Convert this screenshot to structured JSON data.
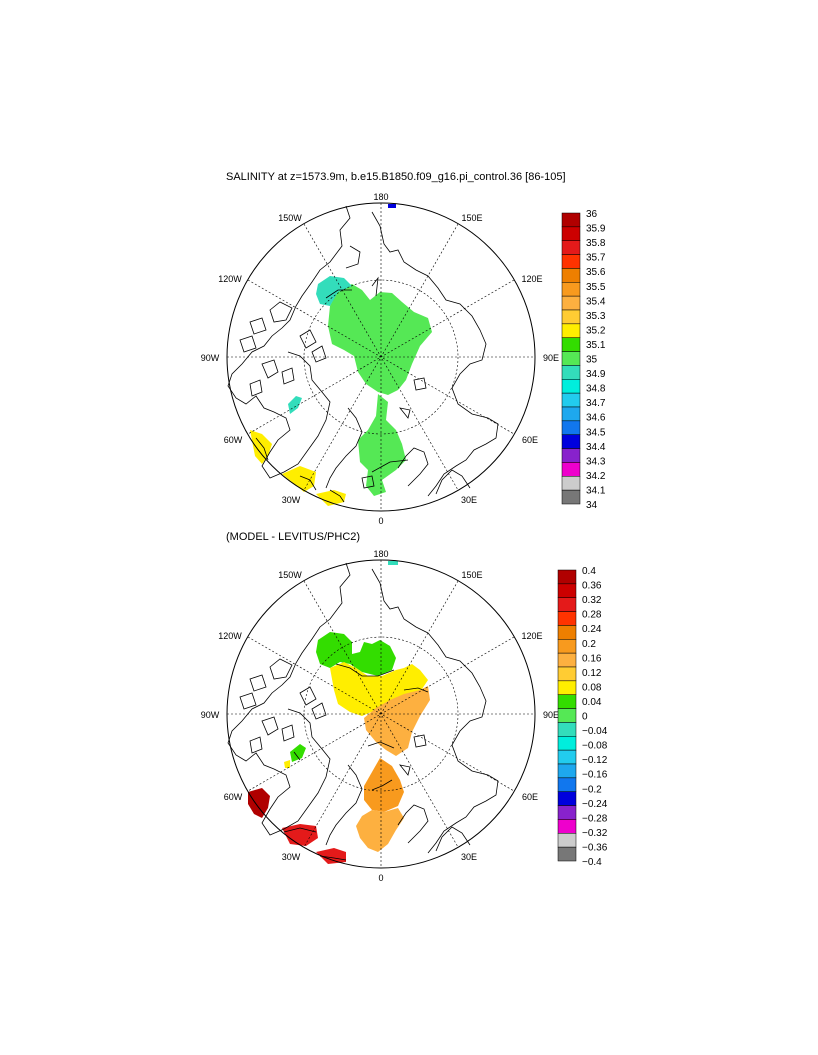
{
  "panel1": {
    "title": "SALINITY at z=1573.9m, b.e15.B1850.f09_g16.pi_control.36 [86-105]",
    "lon_labels": [
      "180",
      "150W",
      "150E",
      "120W",
      "120E",
      "90W",
      "90E",
      "60W",
      "60E",
      "30W",
      "30E",
      "0"
    ],
    "colorbar": {
      "labels": [
        "36",
        "35.9",
        "35.8",
        "35.7",
        "35.6",
        "35.5",
        "35.4",
        "35.3",
        "35.2",
        "35.1",
        "35",
        "34.9",
        "34.8",
        "34.7",
        "34.6",
        "34.5",
        "34.4",
        "34.3",
        "34.2",
        "34.1",
        "34"
      ],
      "colors": [
        "#b00000",
        "#cc0000",
        "#e41a1a",
        "#ff3300",
        "#ee7f00",
        "#f89a1e",
        "#fdb040",
        "#ffcc33",
        "#ffee00",
        "#33dd00",
        "#55e855",
        "#33ddbb",
        "#00eedd",
        "#22ccee",
        "#1ea8ee",
        "#1177ee",
        "#0000dd",
        "#8822cc",
        "#ee00cc",
        "#cccccc",
        "#777777"
      ]
    }
  },
  "panel2": {
    "title": "(MODEL - LEVITUS/PHC2)",
    "lon_labels": [
      "180",
      "150W",
      "150E",
      "120W",
      "120E",
      "90W",
      "90E",
      "60W",
      "60E",
      "30W",
      "30E",
      "0"
    ],
    "colorbar": {
      "labels": [
        "0.4",
        "0.36",
        "0.32",
        "0.28",
        "0.24",
        "0.2",
        "0.16",
        "0.12",
        "0.08",
        "0.04",
        "0",
        "−0.04",
        "−0.08",
        "−0.12",
        "−0.16",
        "−0.2",
        "−0.24",
        "−0.28",
        "−0.32",
        "−0.36",
        "−0.4"
      ],
      "colors": [
        "#b00000",
        "#cc0000",
        "#e41a1a",
        "#ff3300",
        "#ee7f00",
        "#f89a1e",
        "#fdb040",
        "#ffcc33",
        "#ffee00",
        "#33dd00",
        "#55e855",
        "#33ddbb",
        "#00eedd",
        "#22ccee",
        "#1ea8ee",
        "#1177ee",
        "#0000dd",
        "#8822cc",
        "#ee00cc",
        "#cccccc",
        "#777777"
      ]
    }
  }
}
